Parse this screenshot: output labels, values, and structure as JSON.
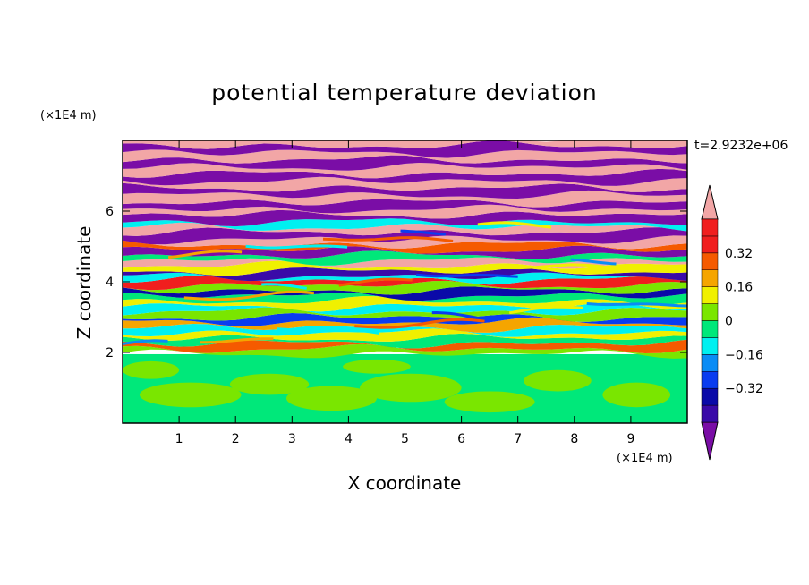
{
  "chart_data": {
    "type": "heatmap",
    "title": "potential temperature deviation",
    "xlabel": "X coordinate",
    "ylabel": "Z coordinate",
    "x_unit": "(×1E4 m)",
    "y_unit": "(×1E4 m)",
    "time_label": "t=2.9232e+06",
    "xlim": [
      0,
      10
    ],
    "ylim": [
      0,
      8
    ],
    "x_ticks": [
      "1",
      "2",
      "3",
      "4",
      "5",
      "6",
      "7",
      "8",
      "9"
    ],
    "y_ticks": [
      "2",
      "4",
      "6"
    ],
    "colorbar": {
      "labels": [
        "0.32",
        "0.16",
        "0",
        "-0.16",
        "-0.32"
      ],
      "label_values": [
        0.32,
        0.16,
        0,
        -0.16,
        -0.32
      ],
      "levels": [
        -0.48,
        -0.4,
        -0.32,
        -0.24,
        -0.16,
        -0.08,
        0,
        0.08,
        0.16,
        0.24,
        0.32,
        0.4,
        0.48
      ],
      "colors": [
        "#7a0da6",
        "#3a0aa8",
        "#0a0aa8",
        "#0a3cf0",
        "#0a8cf5",
        "#00f0f0",
        "#00e87a",
        "#7ae600",
        "#f0f000",
        "#f5a500",
        "#f55a00",
        "#f01e1e",
        "#f2a6a6"
      ],
      "extend": "both"
    },
    "regions": [
      {
        "z_range": [
          0,
          2
        ],
        "description": "near-neutral values (about -0.08 to 0.08)"
      },
      {
        "z_range": [
          2,
          4
        ],
        "description": "mixed small positive and negative perturbations"
      },
      {
        "z_range": [
          4,
          8
        ],
        "description": "alternating layers of strong positive and negative deviation"
      }
    ]
  }
}
